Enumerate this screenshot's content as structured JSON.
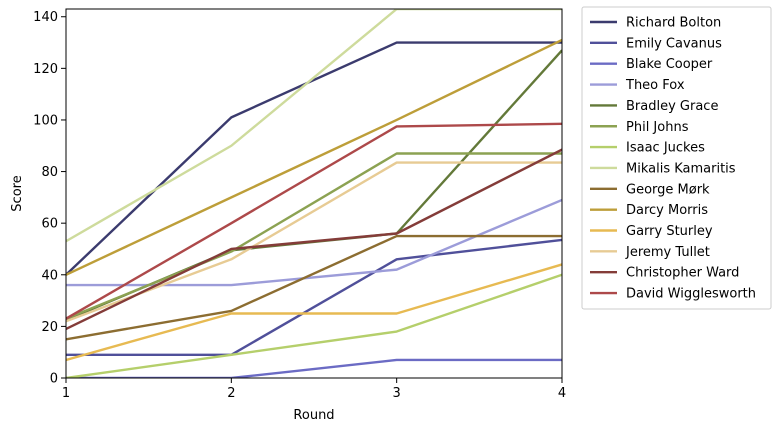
{
  "chart_data": {
    "type": "line",
    "title": "",
    "xlabel": "Round",
    "ylabel": "Score",
    "x": [
      1,
      2,
      3,
      4
    ],
    "xlim": [
      1,
      4
    ],
    "ylim": [
      0,
      143
    ],
    "xticks": [
      1,
      2,
      3,
      4
    ],
    "yticks": [
      0,
      20,
      40,
      60,
      80,
      100,
      120,
      140
    ],
    "grid": false,
    "legend_position": "outside-right",
    "series": [
      {
        "name": "Richard Bolton",
        "color": "#3b3b6e",
        "values": [
          40,
          101,
          130,
          130
        ]
      },
      {
        "name": "Emily Cavanus",
        "color": "#50509a",
        "values": [
          9,
          9,
          46,
          53.5
        ]
      },
      {
        "name": "Blake Cooper",
        "color": "#6b6bc4",
        "values": [
          0,
          0,
          7,
          7
        ]
      },
      {
        "name": "Theo Fox",
        "color": "#9c9cd9",
        "values": [
          36,
          36,
          42,
          69
        ]
      },
      {
        "name": "Bradley Grace",
        "color": "#637939",
        "values": [
          22.5,
          49.5,
          56,
          127
        ]
      },
      {
        "name": "Phil Johns",
        "color": "#8ca252",
        "values": [
          23,
          49,
          87,
          87
        ]
      },
      {
        "name": "Isaac Juckes",
        "color": "#b5cf6b",
        "values": [
          0,
          9,
          18,
          40
        ]
      },
      {
        "name": "Mikalis Kamaritis",
        "color": "#cedb9c",
        "values": [
          53,
          90,
          143,
          143
        ]
      },
      {
        "name": "George Mørk",
        "color": "#8c6d31",
        "values": [
          15,
          26,
          55,
          55
        ]
      },
      {
        "name": "Darcy Morris",
        "color": "#bd9e39",
        "values": [
          40,
          70,
          100,
          131
        ]
      },
      {
        "name": "Garry Sturley",
        "color": "#e7ba52",
        "values": [
          7,
          25,
          25,
          44
        ]
      },
      {
        "name": "Jeremy Tullet",
        "color": "#e7cb94",
        "values": [
          22,
          46,
          83.5,
          83.5
        ]
      },
      {
        "name": "Christopher Ward",
        "color": "#843c39",
        "values": [
          19,
          50,
          56,
          88.5
        ]
      },
      {
        "name": "David Wigglesworth",
        "color": "#ad494a",
        "values": [
          23,
          60,
          97.5,
          98.5
        ]
      }
    ]
  }
}
